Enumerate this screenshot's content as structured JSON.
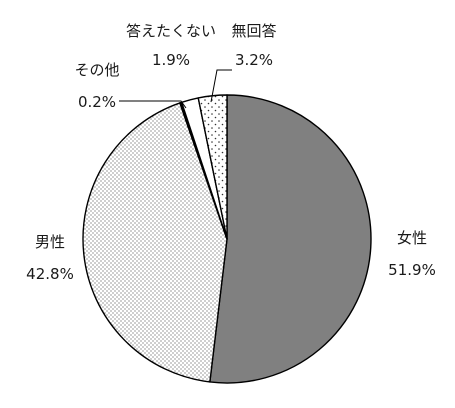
{
  "chart_data": {
    "type": "pie",
    "start": "12 o'clock",
    "direction": "clockwise",
    "slices": [
      {
        "label": "女性",
        "value": 51.9,
        "value_text": "51.9%",
        "color": "#808080",
        "pattern": "solid"
      },
      {
        "label": "男性",
        "value": 42.8,
        "value_text": "42.8%",
        "color": "#ffffff",
        "pattern": "dense-dots"
      },
      {
        "label": "その他",
        "value": 0.2,
        "value_text": "0.2%",
        "color": "#000000",
        "pattern": "solid"
      },
      {
        "label": "答えたくない",
        "value": 1.9,
        "value_text": "1.9%",
        "color": "#ffffff",
        "pattern": "none"
      },
      {
        "label": "無回答",
        "value": 3.2,
        "value_text": "3.2%",
        "color": "#ffffff",
        "pattern": "sparse-dots"
      }
    ]
  }
}
